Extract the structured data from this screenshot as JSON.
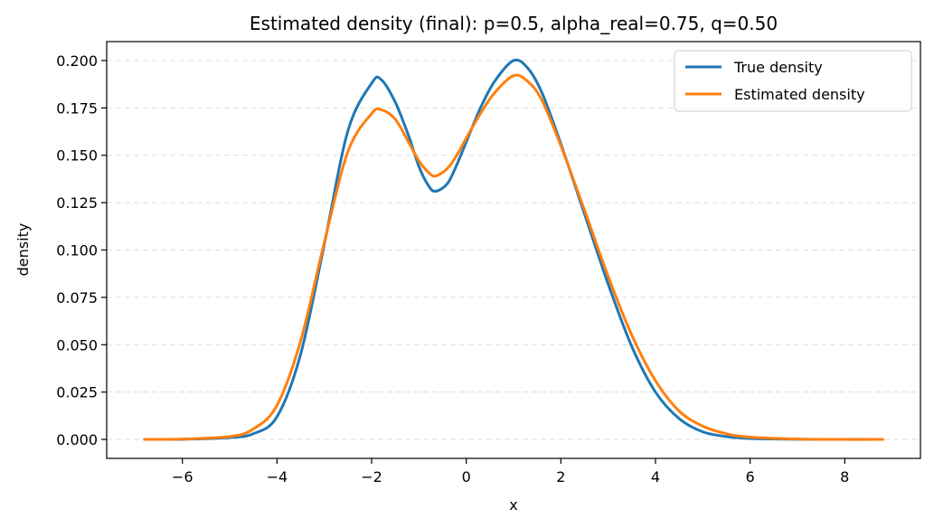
{
  "chart_data": {
    "type": "line",
    "title": "Estimated density (final): p=0.5, alpha_real=0.75, q=0.50",
    "xlabel": "x",
    "ylabel": "density",
    "xlim": [
      -7.6,
      9.6
    ],
    "ylim": [
      -0.01,
      0.21
    ],
    "x_ticks": [
      -6,
      -4,
      -2,
      0,
      2,
      4,
      6,
      8
    ],
    "x_tick_labels": [
      "−6",
      "−4",
      "−2",
      "0",
      "2",
      "4",
      "6",
      "8"
    ],
    "y_ticks": [
      0,
      0.025,
      0.05,
      0.075,
      0.1,
      0.125,
      0.15,
      0.175,
      0.2
    ],
    "y_tick_labels": [
      "0.000",
      "0.025",
      "0.050",
      "0.075",
      "0.100",
      "0.125",
      "0.150",
      "0.175",
      "0.200"
    ],
    "grid": "y-dashed",
    "legend_position": "top-right",
    "x": [
      -6.8,
      -6,
      -5,
      -4.5,
      -4,
      -3.5,
      -3,
      -2.5,
      -2,
      -1.8,
      -1.5,
      -1.2,
      -1,
      -0.8,
      -0.65,
      -0.4,
      -0.2,
      0,
      0.3,
      0.6,
      1,
      1.3,
      1.6,
      2,
      2.5,
      3,
      3.5,
      4,
      4.5,
      5,
      5.5,
      6,
      7,
      8,
      8.8
    ],
    "series": [
      {
        "name": "True density",
        "color": "#1f77b4",
        "values": [
          0,
          0.0001,
          0.001,
          0.003,
          0.012,
          0.045,
          0.103,
          0.163,
          0.188,
          0.19,
          0.178,
          0.159,
          0.144,
          0.134,
          0.131,
          0.135,
          0.145,
          0.157,
          0.175,
          0.189,
          0.2,
          0.196,
          0.183,
          0.156,
          0.119,
          0.082,
          0.049,
          0.025,
          0.011,
          0.004,
          0.0015,
          0.0005,
          0.0001,
          0,
          0
        ]
      },
      {
        "name": "Estimated density",
        "color": "#ff7f0e",
        "values": [
          0,
          0.0002,
          0.0015,
          0.0055,
          0.018,
          0.052,
          0.104,
          0.152,
          0.172,
          0.174,
          0.169,
          0.156,
          0.147,
          0.141,
          0.139,
          0.143,
          0.15,
          0.159,
          0.172,
          0.183,
          0.192,
          0.189,
          0.179,
          0.155,
          0.121,
          0.086,
          0.055,
          0.031,
          0.015,
          0.007,
          0.003,
          0.0012,
          0.0002,
          0,
          0
        ]
      }
    ]
  }
}
